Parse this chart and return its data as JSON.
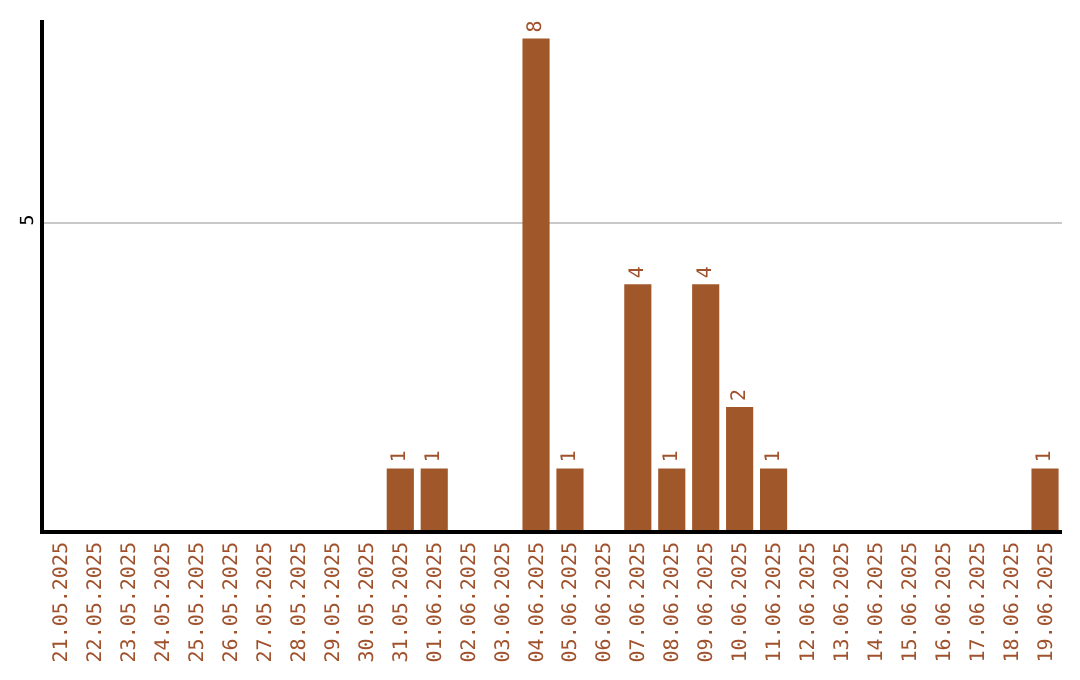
{
  "chart_data": {
    "type": "bar",
    "categories": [
      "21.05.2025",
      "22.05.2025",
      "23.05.2025",
      "24.05.2025",
      "25.05.2025",
      "26.05.2025",
      "27.05.2025",
      "28.05.2025",
      "29.05.2025",
      "30.05.2025",
      "31.05.2025",
      "01.06.2025",
      "02.06.2025",
      "03.06.2025",
      "04.06.2025",
      "05.06.2025",
      "06.06.2025",
      "07.06.2025",
      "08.06.2025",
      "09.06.2025",
      "10.06.2025",
      "11.06.2025",
      "12.06.2025",
      "13.06.2025",
      "14.06.2025",
      "15.06.2025",
      "16.06.2025",
      "17.06.2025",
      "18.06.2025",
      "19.06.2025"
    ],
    "values": [
      0,
      0,
      0,
      0,
      0,
      0,
      0,
      0,
      0,
      0,
      1,
      1,
      0,
      0,
      8,
      1,
      0,
      4,
      1,
      4,
      2,
      1,
      0,
      0,
      0,
      0,
      0,
      0,
      0,
      1
    ],
    "value_labels": [
      null,
      null,
      null,
      null,
      null,
      null,
      null,
      null,
      null,
      null,
      "1",
      "1",
      null,
      null,
      "8",
      "1",
      null,
      "4",
      "1",
      "4",
      "2",
      "1",
      null,
      null,
      null,
      null,
      null,
      null,
      null,
      "1"
    ],
    "color": "#a0572a",
    "ylim": [
      0,
      8.3
    ],
    "yticks": [
      5
    ],
    "grid": "y"
  }
}
